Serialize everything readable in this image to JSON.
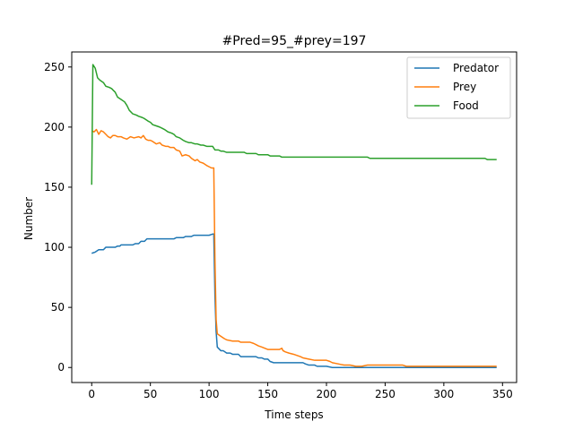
{
  "chart_data": {
    "type": "line",
    "title": "#Pred=95_#prey=197",
    "xlabel": "Time steps",
    "ylabel": "Number",
    "xlim": [
      -17,
      362
    ],
    "ylim": [
      -12.5,
      262.5
    ],
    "xticks": [
      0,
      50,
      100,
      150,
      200,
      250,
      300,
      350
    ],
    "yticks": [
      0,
      50,
      100,
      150,
      200,
      250
    ],
    "grid": false,
    "legend_position": "top-right",
    "series": [
      {
        "name": "Predator",
        "color": "#1f77b4",
        "points": [
          [
            0,
            95
          ],
          [
            3,
            96
          ],
          [
            6,
            98
          ],
          [
            10,
            98
          ],
          [
            12,
            100
          ],
          [
            20,
            100
          ],
          [
            22,
            101
          ],
          [
            24,
            101
          ],
          [
            25,
            102
          ],
          [
            35,
            102
          ],
          [
            37,
            103
          ],
          [
            40,
            103
          ],
          [
            42,
            105
          ],
          [
            45,
            105
          ],
          [
            47,
            107
          ],
          [
            70,
            107
          ],
          [
            72,
            108
          ],
          [
            78,
            108
          ],
          [
            80,
            109
          ],
          [
            85,
            109
          ],
          [
            87,
            110
          ],
          [
            100,
            110
          ],
          [
            103,
            111
          ],
          [
            104,
            111
          ],
          [
            105,
            60
          ],
          [
            106,
            30
          ],
          [
            107,
            17
          ],
          [
            110,
            14
          ],
          [
            112,
            14
          ],
          [
            115,
            12
          ],
          [
            118,
            12
          ],
          [
            120,
            11
          ],
          [
            125,
            11
          ],
          [
            127,
            9
          ],
          [
            130,
            9
          ],
          [
            140,
            9
          ],
          [
            142,
            8
          ],
          [
            145,
            8
          ],
          [
            147,
            7
          ],
          [
            150,
            7
          ],
          [
            152,
            5
          ],
          [
            155,
            4
          ],
          [
            180,
            4
          ],
          [
            182,
            3
          ],
          [
            185,
            2
          ],
          [
            190,
            2
          ],
          [
            192,
            1
          ],
          [
            200,
            1
          ],
          [
            205,
            0
          ],
          [
            345,
            0
          ]
        ]
      },
      {
        "name": "Prey",
        "color": "#ff7f0e",
        "points": [
          [
            0,
            197
          ],
          [
            2,
            196
          ],
          [
            4,
            198
          ],
          [
            6,
            194
          ],
          [
            8,
            197
          ],
          [
            10,
            196
          ],
          [
            12,
            194
          ],
          [
            14,
            192
          ],
          [
            16,
            191
          ],
          [
            18,
            193
          ],
          [
            20,
            193
          ],
          [
            22,
            192
          ],
          [
            25,
            192
          ],
          [
            27,
            191
          ],
          [
            30,
            190
          ],
          [
            33,
            192
          ],
          [
            36,
            191
          ],
          [
            40,
            192
          ],
          [
            42,
            191
          ],
          [
            44,
            193
          ],
          [
            46,
            190
          ],
          [
            48,
            189
          ],
          [
            50,
            189
          ],
          [
            52,
            188
          ],
          [
            55,
            186
          ],
          [
            58,
            187
          ],
          [
            60,
            185
          ],
          [
            63,
            184
          ],
          [
            65,
            184
          ],
          [
            67,
            183
          ],
          [
            70,
            183
          ],
          [
            72,
            181
          ],
          [
            75,
            180
          ],
          [
            77,
            176
          ],
          [
            80,
            177
          ],
          [
            83,
            176
          ],
          [
            85,
            174
          ],
          [
            88,
            172
          ],
          [
            90,
            173
          ],
          [
            92,
            171
          ],
          [
            95,
            170
          ],
          [
            98,
            168
          ],
          [
            100,
            167
          ],
          [
            102,
            166
          ],
          [
            104,
            166
          ],
          [
            105,
            90
          ],
          [
            106,
            40
          ],
          [
            107,
            28
          ],
          [
            110,
            26
          ],
          [
            113,
            24
          ],
          [
            115,
            23
          ],
          [
            120,
            22
          ],
          [
            125,
            22
          ],
          [
            127,
            21
          ],
          [
            135,
            21
          ],
          [
            138,
            20
          ],
          [
            140,
            19
          ],
          [
            142,
            18
          ],
          [
            145,
            17
          ],
          [
            150,
            15
          ],
          [
            160,
            15
          ],
          [
            162,
            16
          ],
          [
            163,
            14
          ],
          [
            165,
            13
          ],
          [
            168,
            12
          ],
          [
            172,
            11
          ],
          [
            175,
            10
          ],
          [
            178,
            9
          ],
          [
            180,
            8
          ],
          [
            185,
            7
          ],
          [
            190,
            6
          ],
          [
            200,
            6
          ],
          [
            203,
            5
          ],
          [
            205,
            4
          ],
          [
            210,
            3
          ],
          [
            215,
            2
          ],
          [
            220,
            2
          ],
          [
            225,
            1
          ],
          [
            230,
            1
          ],
          [
            235,
            2
          ],
          [
            240,
            2
          ],
          [
            265,
            2
          ],
          [
            268,
            1
          ],
          [
            345,
            1
          ]
        ]
      },
      {
        "name": "Food",
        "color": "#2ca02c",
        "points": [
          [
            0,
            152
          ],
          [
            1,
            252
          ],
          [
            3,
            249
          ],
          [
            5,
            241
          ],
          [
            7,
            239
          ],
          [
            10,
            237
          ],
          [
            12,
            234
          ],
          [
            15,
            233
          ],
          [
            17,
            232
          ],
          [
            20,
            229
          ],
          [
            22,
            225
          ],
          [
            25,
            223
          ],
          [
            28,
            221
          ],
          [
            30,
            218
          ],
          [
            32,
            214
          ],
          [
            35,
            211
          ],
          [
            38,
            210
          ],
          [
            40,
            209
          ],
          [
            43,
            208
          ],
          [
            45,
            207
          ],
          [
            48,
            205
          ],
          [
            50,
            204
          ],
          [
            52,
            202
          ],
          [
            55,
            201
          ],
          [
            58,
            200
          ],
          [
            60,
            199
          ],
          [
            62,
            198
          ],
          [
            65,
            196
          ],
          [
            68,
            195
          ],
          [
            70,
            194
          ],
          [
            72,
            192
          ],
          [
            75,
            191
          ],
          [
            78,
            189
          ],
          [
            80,
            188
          ],
          [
            83,
            187
          ],
          [
            85,
            187
          ],
          [
            88,
            186
          ],
          [
            90,
            186
          ],
          [
            93,
            185
          ],
          [
            95,
            185
          ],
          [
            98,
            184
          ],
          [
            100,
            184
          ],
          [
            103,
            184
          ],
          [
            105,
            181
          ],
          [
            108,
            181
          ],
          [
            110,
            180
          ],
          [
            112,
            180
          ],
          [
            115,
            179
          ],
          [
            130,
            179
          ],
          [
            132,
            178
          ],
          [
            140,
            178
          ],
          [
            142,
            177
          ],
          [
            150,
            177
          ],
          [
            152,
            176
          ],
          [
            160,
            176
          ],
          [
            162,
            175
          ],
          [
            235,
            175
          ],
          [
            237,
            174
          ],
          [
            335,
            174
          ],
          [
            337,
            173
          ],
          [
            345,
            173
          ]
        ]
      }
    ]
  }
}
